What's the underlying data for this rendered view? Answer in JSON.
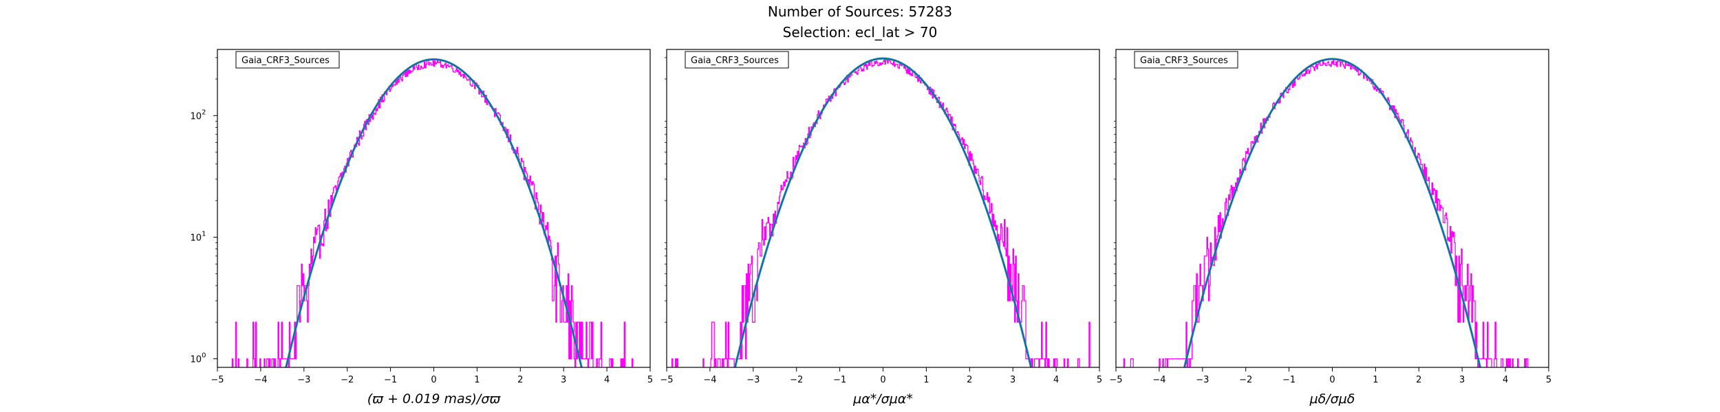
{
  "figure": {
    "title_line1": "Number of Sources: 57283",
    "title_line2": "Selection: ecl_lat > 70"
  },
  "colors": {
    "histogram": "#ff00ff",
    "fit_outer": "#20a090",
    "fit_inner": "#1f4fbf",
    "frame": "#000000"
  },
  "chart_data": [
    {
      "type": "histogram",
      "legend": "Gaia_CRF3_Sources",
      "legend_position": "top-left",
      "xlabel": "(ϖ + 0.019 mas)/σϖ",
      "xlim": [
        -5,
        5
      ],
      "ylim": [
        0.85,
        350
      ],
      "yscale": "log",
      "x_ticks": [
        "−5",
        "−4",
        "−3",
        "−2",
        "−1",
        "0",
        "1",
        "2",
        "3",
        "4",
        "5"
      ],
      "y_ticks": [
        {
          "value": 1,
          "base": "10",
          "exp": "0"
        },
        {
          "value": 10,
          "base": "10",
          "exp": "1"
        },
        {
          "value": 100,
          "base": "10",
          "exp": "2"
        }
      ],
      "hist_range": [
        -4.9,
        4.6
      ],
      "hist_peak": 270,
      "hist_sigma": 1.03,
      "fit_peak": 290,
      "fit_sigma": 1.0,
      "fit_range": [
        -3.6,
        3.6
      ]
    },
    {
      "type": "histogram",
      "legend": "Gaia_CRF3_Sources",
      "legend_position": "top-left",
      "xlabel": "μα*/σμα*",
      "xlim": [
        -5,
        5
      ],
      "ylim": [
        0.85,
        350
      ],
      "yscale": "log",
      "x_ticks": [
        "−5",
        "−4",
        "−3",
        "−2",
        "−1",
        "0",
        "1",
        "2",
        "3",
        "4",
        "5"
      ],
      "y_ticks": [
        {
          "value": 1,
          "base": "10",
          "exp": "0"
        },
        {
          "value": 10,
          "base": "10",
          "exp": "1"
        },
        {
          "value": 100,
          "base": "10",
          "exp": "2"
        }
      ],
      "hist_range": [
        -4.9,
        4.9
      ],
      "hist_peak": 275,
      "hist_sigma": 1.05,
      "fit_peak": 295,
      "fit_sigma": 1.0,
      "fit_range": [
        -3.6,
        3.6
      ]
    },
    {
      "type": "histogram",
      "legend": "Gaia_CRF3_Sources",
      "legend_position": "top-left",
      "xlabel": "μδ/σμδ",
      "xlim": [
        -5,
        5
      ],
      "ylim": [
        0.85,
        350
      ],
      "yscale": "log",
      "x_ticks": [
        "−5",
        "−4",
        "−3",
        "−2",
        "−1",
        "0",
        "1",
        "2",
        "3",
        "4",
        "5"
      ],
      "y_ticks": [
        {
          "value": 1,
          "base": "10",
          "exp": "0"
        },
        {
          "value": 10,
          "base": "10",
          "exp": "1"
        },
        {
          "value": 100,
          "base": "10",
          "exp": "2"
        }
      ],
      "hist_range": [
        -4.9,
        4.8
      ],
      "hist_peak": 272,
      "hist_sigma": 1.05,
      "fit_peak": 292,
      "fit_sigma": 1.0,
      "fit_range": [
        -3.7,
        3.7
      ]
    }
  ]
}
